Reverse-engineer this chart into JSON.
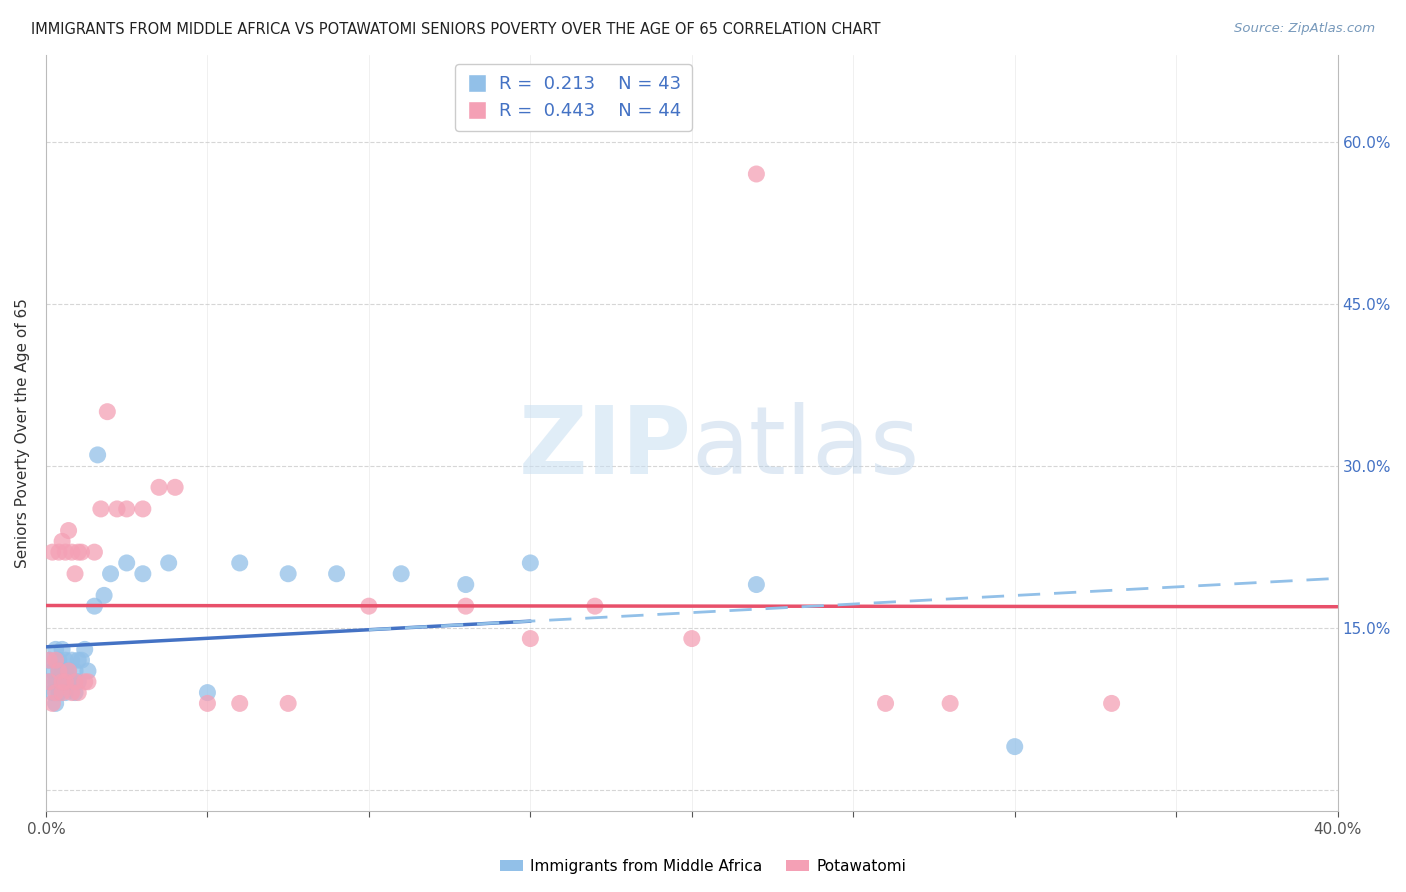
{
  "title": "IMMIGRANTS FROM MIDDLE AFRICA VS POTAWATOMI SENIORS POVERTY OVER THE AGE OF 65 CORRELATION CHART",
  "source": "Source: ZipAtlas.com",
  "ylabel": "Seniors Poverty Over the Age of 65",
  "xlim": [
    0.0,
    0.4
  ],
  "ylim": [
    -0.02,
    0.68
  ],
  "blue_color": "#92C0E8",
  "pink_color": "#F4A0B5",
  "blue_line_color": "#4472C4",
  "pink_line_color": "#E8506A",
  "blue_dashed_color": "#92C0E8",
  "legend_R1": "0.213",
  "legend_N1": "43",
  "legend_R2": "0.443",
  "legend_N2": "44",
  "legend_label1": "Immigrants from Middle Africa",
  "legend_label2": "Potawatomi",
  "blue_x": [
    0.001,
    0.001,
    0.002,
    0.002,
    0.003,
    0.003,
    0.003,
    0.004,
    0.004,
    0.004,
    0.005,
    0.005,
    0.005,
    0.006,
    0.006,
    0.006,
    0.007,
    0.007,
    0.008,
    0.008,
    0.009,
    0.009,
    0.01,
    0.01,
    0.011,
    0.012,
    0.013,
    0.015,
    0.016,
    0.018,
    0.02,
    0.025,
    0.03,
    0.038,
    0.05,
    0.06,
    0.075,
    0.09,
    0.11,
    0.13,
    0.15,
    0.22,
    0.3
  ],
  "blue_y": [
    0.1,
    0.12,
    0.11,
    0.09,
    0.1,
    0.08,
    0.13,
    0.11,
    0.09,
    0.12,
    0.1,
    0.11,
    0.13,
    0.09,
    0.11,
    0.12,
    0.1,
    0.11,
    0.12,
    0.1,
    0.11,
    0.09,
    0.1,
    0.12,
    0.12,
    0.13,
    0.11,
    0.17,
    0.31,
    0.18,
    0.2,
    0.21,
    0.2,
    0.21,
    0.09,
    0.21,
    0.2,
    0.2,
    0.2,
    0.19,
    0.21,
    0.19,
    0.04
  ],
  "pink_x": [
    0.001,
    0.001,
    0.002,
    0.002,
    0.003,
    0.003,
    0.004,
    0.004,
    0.005,
    0.005,
    0.005,
    0.006,
    0.006,
    0.007,
    0.007,
    0.008,
    0.008,
    0.009,
    0.009,
    0.01,
    0.01,
    0.011,
    0.012,
    0.013,
    0.015,
    0.017,
    0.019,
    0.022,
    0.025,
    0.03,
    0.035,
    0.04,
    0.05,
    0.06,
    0.075,
    0.1,
    0.13,
    0.17,
    0.22,
    0.26,
    0.15,
    0.2,
    0.28,
    0.33
  ],
  "pink_y": [
    0.1,
    0.12,
    0.22,
    0.08,
    0.12,
    0.09,
    0.11,
    0.22,
    0.09,
    0.1,
    0.23,
    0.22,
    0.1,
    0.24,
    0.11,
    0.22,
    0.09,
    0.1,
    0.2,
    0.09,
    0.22,
    0.22,
    0.1,
    0.1,
    0.22,
    0.26,
    0.35,
    0.26,
    0.26,
    0.26,
    0.28,
    0.28,
    0.08,
    0.08,
    0.08,
    0.17,
    0.17,
    0.17,
    0.57,
    0.08,
    0.14,
    0.14,
    0.08,
    0.08
  ]
}
